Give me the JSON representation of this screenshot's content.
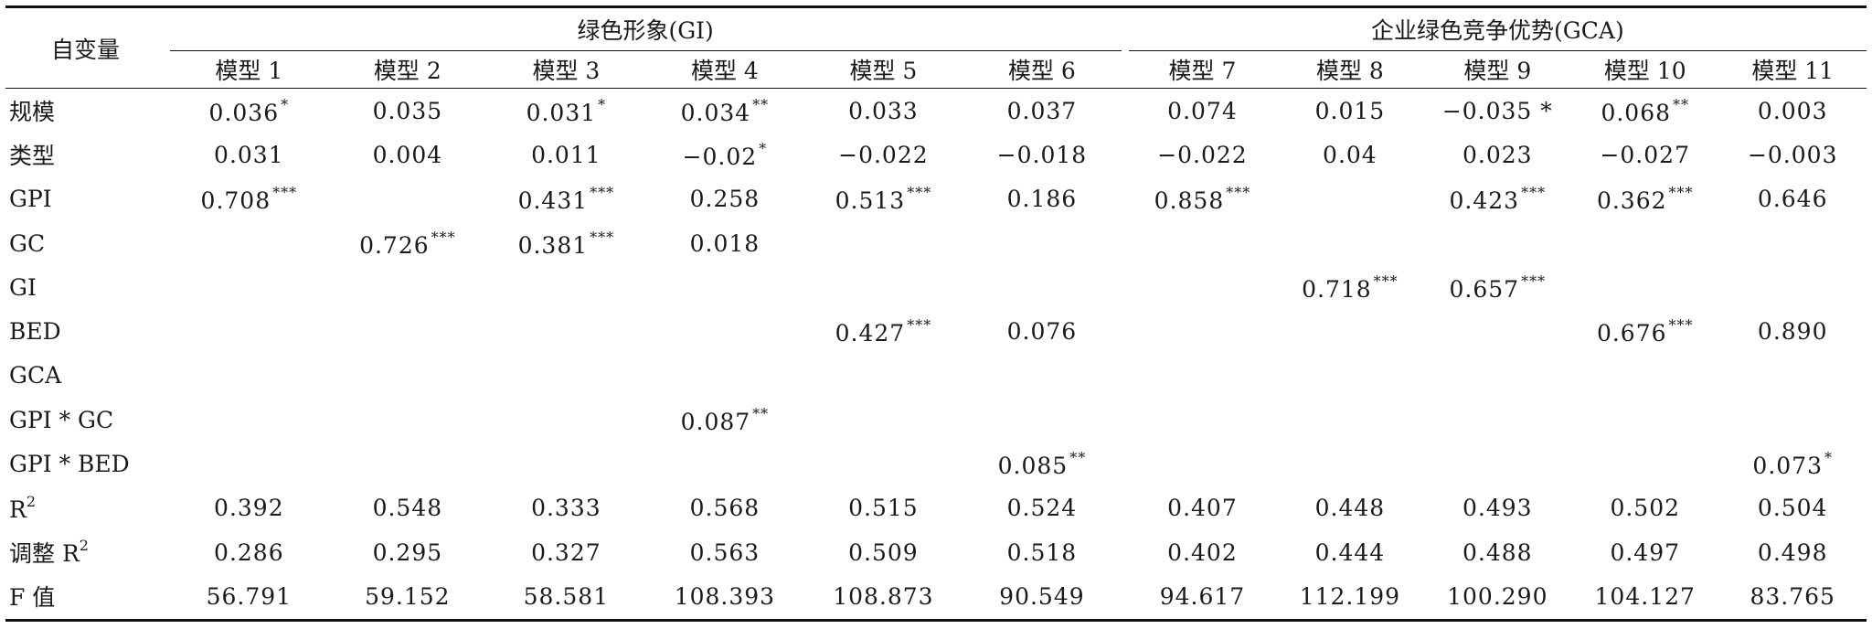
{
  "header": {
    "variable_label": "自变量",
    "group_gi": "绿色形象(GI)",
    "group_gca": "企业绿色竞争优势(GCA)",
    "models": [
      "模型 1",
      "模型 2",
      "模型 3",
      "模型 4",
      "模型 5",
      "模型 6",
      "模型 7",
      "模型 8",
      "模型 9",
      "模型 10",
      "模型 11"
    ]
  },
  "rows": [
    {
      "label": "规模",
      "cells": [
        {
          "v": "0.036",
          "s": "*"
        },
        {
          "v": "0.035",
          "s": ""
        },
        {
          "v": "0.031",
          "s": "*"
        },
        {
          "v": "0.034",
          "s": "**"
        },
        {
          "v": "0.033",
          "s": ""
        },
        {
          "v": "0.037",
          "s": ""
        },
        {
          "v": "0.074",
          "s": ""
        },
        {
          "v": "0.015",
          "s": ""
        },
        {
          "v": "−0.035 *",
          "s": ""
        },
        {
          "v": "0.068",
          "s": "**"
        },
        {
          "v": "0.003",
          "s": ""
        }
      ]
    },
    {
      "label": "类型",
      "cells": [
        {
          "v": "0.031",
          "s": ""
        },
        {
          "v": "0.004",
          "s": ""
        },
        {
          "v": "0.011",
          "s": ""
        },
        {
          "v": "−0.02",
          "s": "*"
        },
        {
          "v": "−0.022",
          "s": ""
        },
        {
          "v": "−0.018",
          "s": ""
        },
        {
          "v": "−0.022",
          "s": ""
        },
        {
          "v": "0.04",
          "s": ""
        },
        {
          "v": "0.023",
          "s": ""
        },
        {
          "v": "−0.027",
          "s": ""
        },
        {
          "v": "−0.003",
          "s": ""
        }
      ]
    },
    {
      "label": "GPI",
      "cells": [
        {
          "v": "0.708",
          "s": "***"
        },
        {
          "v": "",
          "s": ""
        },
        {
          "v": "0.431",
          "s": "***"
        },
        {
          "v": "0.258",
          "s": ""
        },
        {
          "v": "0.513",
          "s": "***"
        },
        {
          "v": "0.186",
          "s": ""
        },
        {
          "v": "0.858",
          "s": "***"
        },
        {
          "v": "",
          "s": ""
        },
        {
          "v": "0.423",
          "s": "***"
        },
        {
          "v": "0.362",
          "s": "***"
        },
        {
          "v": "0.646",
          "s": ""
        }
      ]
    },
    {
      "label": "GC",
      "cells": [
        {
          "v": "",
          "s": ""
        },
        {
          "v": "0.726",
          "s": "***"
        },
        {
          "v": "0.381",
          "s": "***"
        },
        {
          "v": "0.018",
          "s": ""
        },
        {
          "v": "",
          "s": ""
        },
        {
          "v": "",
          "s": ""
        },
        {
          "v": "",
          "s": ""
        },
        {
          "v": "",
          "s": ""
        },
        {
          "v": "",
          "s": ""
        },
        {
          "v": "",
          "s": ""
        },
        {
          "v": "",
          "s": ""
        }
      ]
    },
    {
      "label": "GI",
      "cells": [
        {
          "v": "",
          "s": ""
        },
        {
          "v": "",
          "s": ""
        },
        {
          "v": "",
          "s": ""
        },
        {
          "v": "",
          "s": ""
        },
        {
          "v": "",
          "s": ""
        },
        {
          "v": "",
          "s": ""
        },
        {
          "v": "",
          "s": ""
        },
        {
          "v": "0.718",
          "s": "***"
        },
        {
          "v": "0.657",
          "s": "***"
        },
        {
          "v": "",
          "s": ""
        },
        {
          "v": "",
          "s": ""
        }
      ]
    },
    {
      "label": "BED",
      "cells": [
        {
          "v": "",
          "s": ""
        },
        {
          "v": "",
          "s": ""
        },
        {
          "v": "",
          "s": ""
        },
        {
          "v": "",
          "s": ""
        },
        {
          "v": "0.427",
          "s": "***"
        },
        {
          "v": "0.076",
          "s": ""
        },
        {
          "v": "",
          "s": ""
        },
        {
          "v": "",
          "s": ""
        },
        {
          "v": "",
          "s": ""
        },
        {
          "v": "0.676",
          "s": "***"
        },
        {
          "v": "0.890",
          "s": ""
        }
      ]
    },
    {
      "label": "GCA",
      "cells": [
        {
          "v": "",
          "s": ""
        },
        {
          "v": "",
          "s": ""
        },
        {
          "v": "",
          "s": ""
        },
        {
          "v": "",
          "s": ""
        },
        {
          "v": "",
          "s": ""
        },
        {
          "v": "",
          "s": ""
        },
        {
          "v": "",
          "s": ""
        },
        {
          "v": "",
          "s": ""
        },
        {
          "v": "",
          "s": ""
        },
        {
          "v": "",
          "s": ""
        },
        {
          "v": "",
          "s": ""
        }
      ]
    },
    {
      "label": "GPI * GC",
      "cells": [
        {
          "v": "",
          "s": ""
        },
        {
          "v": "",
          "s": ""
        },
        {
          "v": "",
          "s": ""
        },
        {
          "v": "0.087",
          "s": "**"
        },
        {
          "v": "",
          "s": ""
        },
        {
          "v": "",
          "s": ""
        },
        {
          "v": "",
          "s": ""
        },
        {
          "v": "",
          "s": ""
        },
        {
          "v": "",
          "s": ""
        },
        {
          "v": "",
          "s": ""
        },
        {
          "v": "",
          "s": ""
        }
      ]
    },
    {
      "label": "GPI * BED",
      "cells": [
        {
          "v": "",
          "s": ""
        },
        {
          "v": "",
          "s": ""
        },
        {
          "v": "",
          "s": ""
        },
        {
          "v": "",
          "s": ""
        },
        {
          "v": "",
          "s": ""
        },
        {
          "v": "0.085",
          "s": "**"
        },
        {
          "v": "",
          "s": ""
        },
        {
          "v": "",
          "s": ""
        },
        {
          "v": "",
          "s": ""
        },
        {
          "v": "",
          "s": ""
        },
        {
          "v": "0.073",
          "s": "*"
        }
      ]
    },
    {
      "label": "R",
      "label_sup": "2",
      "cells": [
        {
          "v": "0.392",
          "s": ""
        },
        {
          "v": "0.548",
          "s": ""
        },
        {
          "v": "0.333",
          "s": ""
        },
        {
          "v": "0.568",
          "s": ""
        },
        {
          "v": "0.515",
          "s": ""
        },
        {
          "v": "0.524",
          "s": ""
        },
        {
          "v": "0.407",
          "s": ""
        },
        {
          "v": "0.448",
          "s": ""
        },
        {
          "v": "0.493",
          "s": ""
        },
        {
          "v": "0.502",
          "s": ""
        },
        {
          "v": "0.504",
          "s": ""
        }
      ]
    },
    {
      "label": "调整 R",
      "label_sup": "2",
      "cells": [
        {
          "v": "0.286",
          "s": ""
        },
        {
          "v": "0.295",
          "s": ""
        },
        {
          "v": "0.327",
          "s": ""
        },
        {
          "v": "0.563",
          "s": ""
        },
        {
          "v": "0.509",
          "s": ""
        },
        {
          "v": "0.518",
          "s": ""
        },
        {
          "v": "0.402",
          "s": ""
        },
        {
          "v": "0.444",
          "s": ""
        },
        {
          "v": "0.488",
          "s": ""
        },
        {
          "v": "0.497",
          "s": ""
        },
        {
          "v": "0.498",
          "s": ""
        }
      ]
    },
    {
      "label": "F 值",
      "cells": [
        {
          "v": "56.791",
          "s": ""
        },
        {
          "v": "59.152",
          "s": ""
        },
        {
          "v": "58.581",
          "s": ""
        },
        {
          "v": "108.393",
          "s": ""
        },
        {
          "v": "108.873",
          "s": ""
        },
        {
          "v": "90.549",
          "s": ""
        },
        {
          "v": "94.617",
          "s": ""
        },
        {
          "v": "112.199",
          "s": ""
        },
        {
          "v": "100.290",
          "s": ""
        },
        {
          "v": "104.127",
          "s": ""
        },
        {
          "v": "83.765",
          "s": ""
        }
      ]
    }
  ]
}
